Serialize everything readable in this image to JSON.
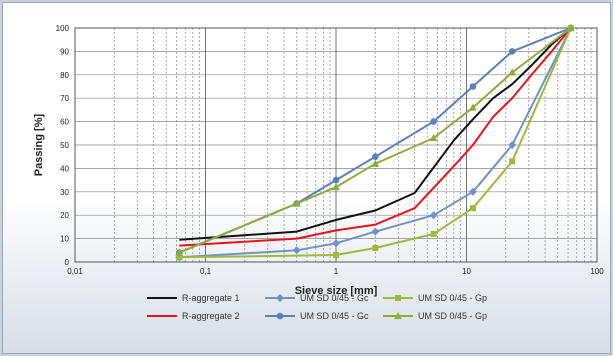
{
  "chart_data": {
    "type": "line",
    "xlabel": "Sieve size [mm]",
    "ylabel": "Passing  [%]",
    "x_scale": "log",
    "xlim": [
      0.01,
      100
    ],
    "ylim": [
      0,
      100
    ],
    "x_ticks": [
      0.01,
      0.1,
      1,
      10,
      100
    ],
    "x_tick_labels": [
      "0,01",
      "0,1",
      "1",
      "10",
      "100"
    ],
    "y_ticks": [
      0,
      10,
      20,
      30,
      40,
      50,
      60,
      70,
      80,
      90,
      100
    ],
    "y_tick_labels": [
      "0",
      "10",
      "20",
      "30",
      "40",
      "50",
      "60",
      "70",
      "80",
      "90",
      "100"
    ],
    "grid": true,
    "legend_position": "bottom",
    "series": [
      {
        "name": "R-aggregate 1",
        "color": "#111111",
        "marker": "none",
        "x": [
          0.063,
          0.5,
          1,
          2,
          4,
          8,
          11.2,
          16,
          22.4,
          31.5,
          45,
          63
        ],
        "y": [
          9.5,
          13,
          18,
          22,
          29.5,
          52,
          61,
          70,
          76,
          84,
          93,
          100
        ]
      },
      {
        "name": "R-aggregate 2",
        "color": "#e8141c",
        "marker": "none",
        "x": [
          0.063,
          0.5,
          1,
          2,
          4,
          8,
          11.2,
          16,
          22.4,
          31.5,
          45,
          63
        ],
        "y": [
          7,
          10,
          13.5,
          16,
          23,
          41,
          50,
          62,
          70,
          80,
          90,
          100
        ]
      },
      {
        "name": "UM SD 0/45 - Gc",
        "color": "#6f93c9",
        "marker": "diamond",
        "x": [
          0.063,
          0.5,
          1,
          2,
          5.6,
          11.2,
          22.4,
          63
        ],
        "y": [
          2,
          5,
          8,
          13,
          20,
          30,
          50,
          100
        ]
      },
      {
        "name": "UM SD 0/45 - Gc",
        "color": "#5b7fc0",
        "marker": "circle",
        "x": [
          0.063,
          0.5,
          1,
          2,
          5.6,
          11.2,
          22.4,
          63
        ],
        "y": [
          4,
          25,
          35,
          45,
          60,
          75,
          90,
          100
        ]
      },
      {
        "name": "UM SD 0/45 - Gp",
        "color": "#9bbb3c",
        "marker": "square",
        "x": [
          0.063,
          1,
          2,
          5.6,
          11.2,
          22.4,
          63
        ],
        "y": [
          2,
          3,
          6,
          12,
          23,
          43,
          100
        ]
      },
      {
        "name": "UM SD 0/45 - Gp",
        "color": "#8cad3a",
        "marker": "triangle",
        "x": [
          0.063,
          0.5,
          1,
          2,
          5.6,
          11.2,
          22.4,
          63
        ],
        "y": [
          4,
          25,
          32,
          42,
          53,
          66,
          81,
          100
        ]
      }
    ]
  }
}
